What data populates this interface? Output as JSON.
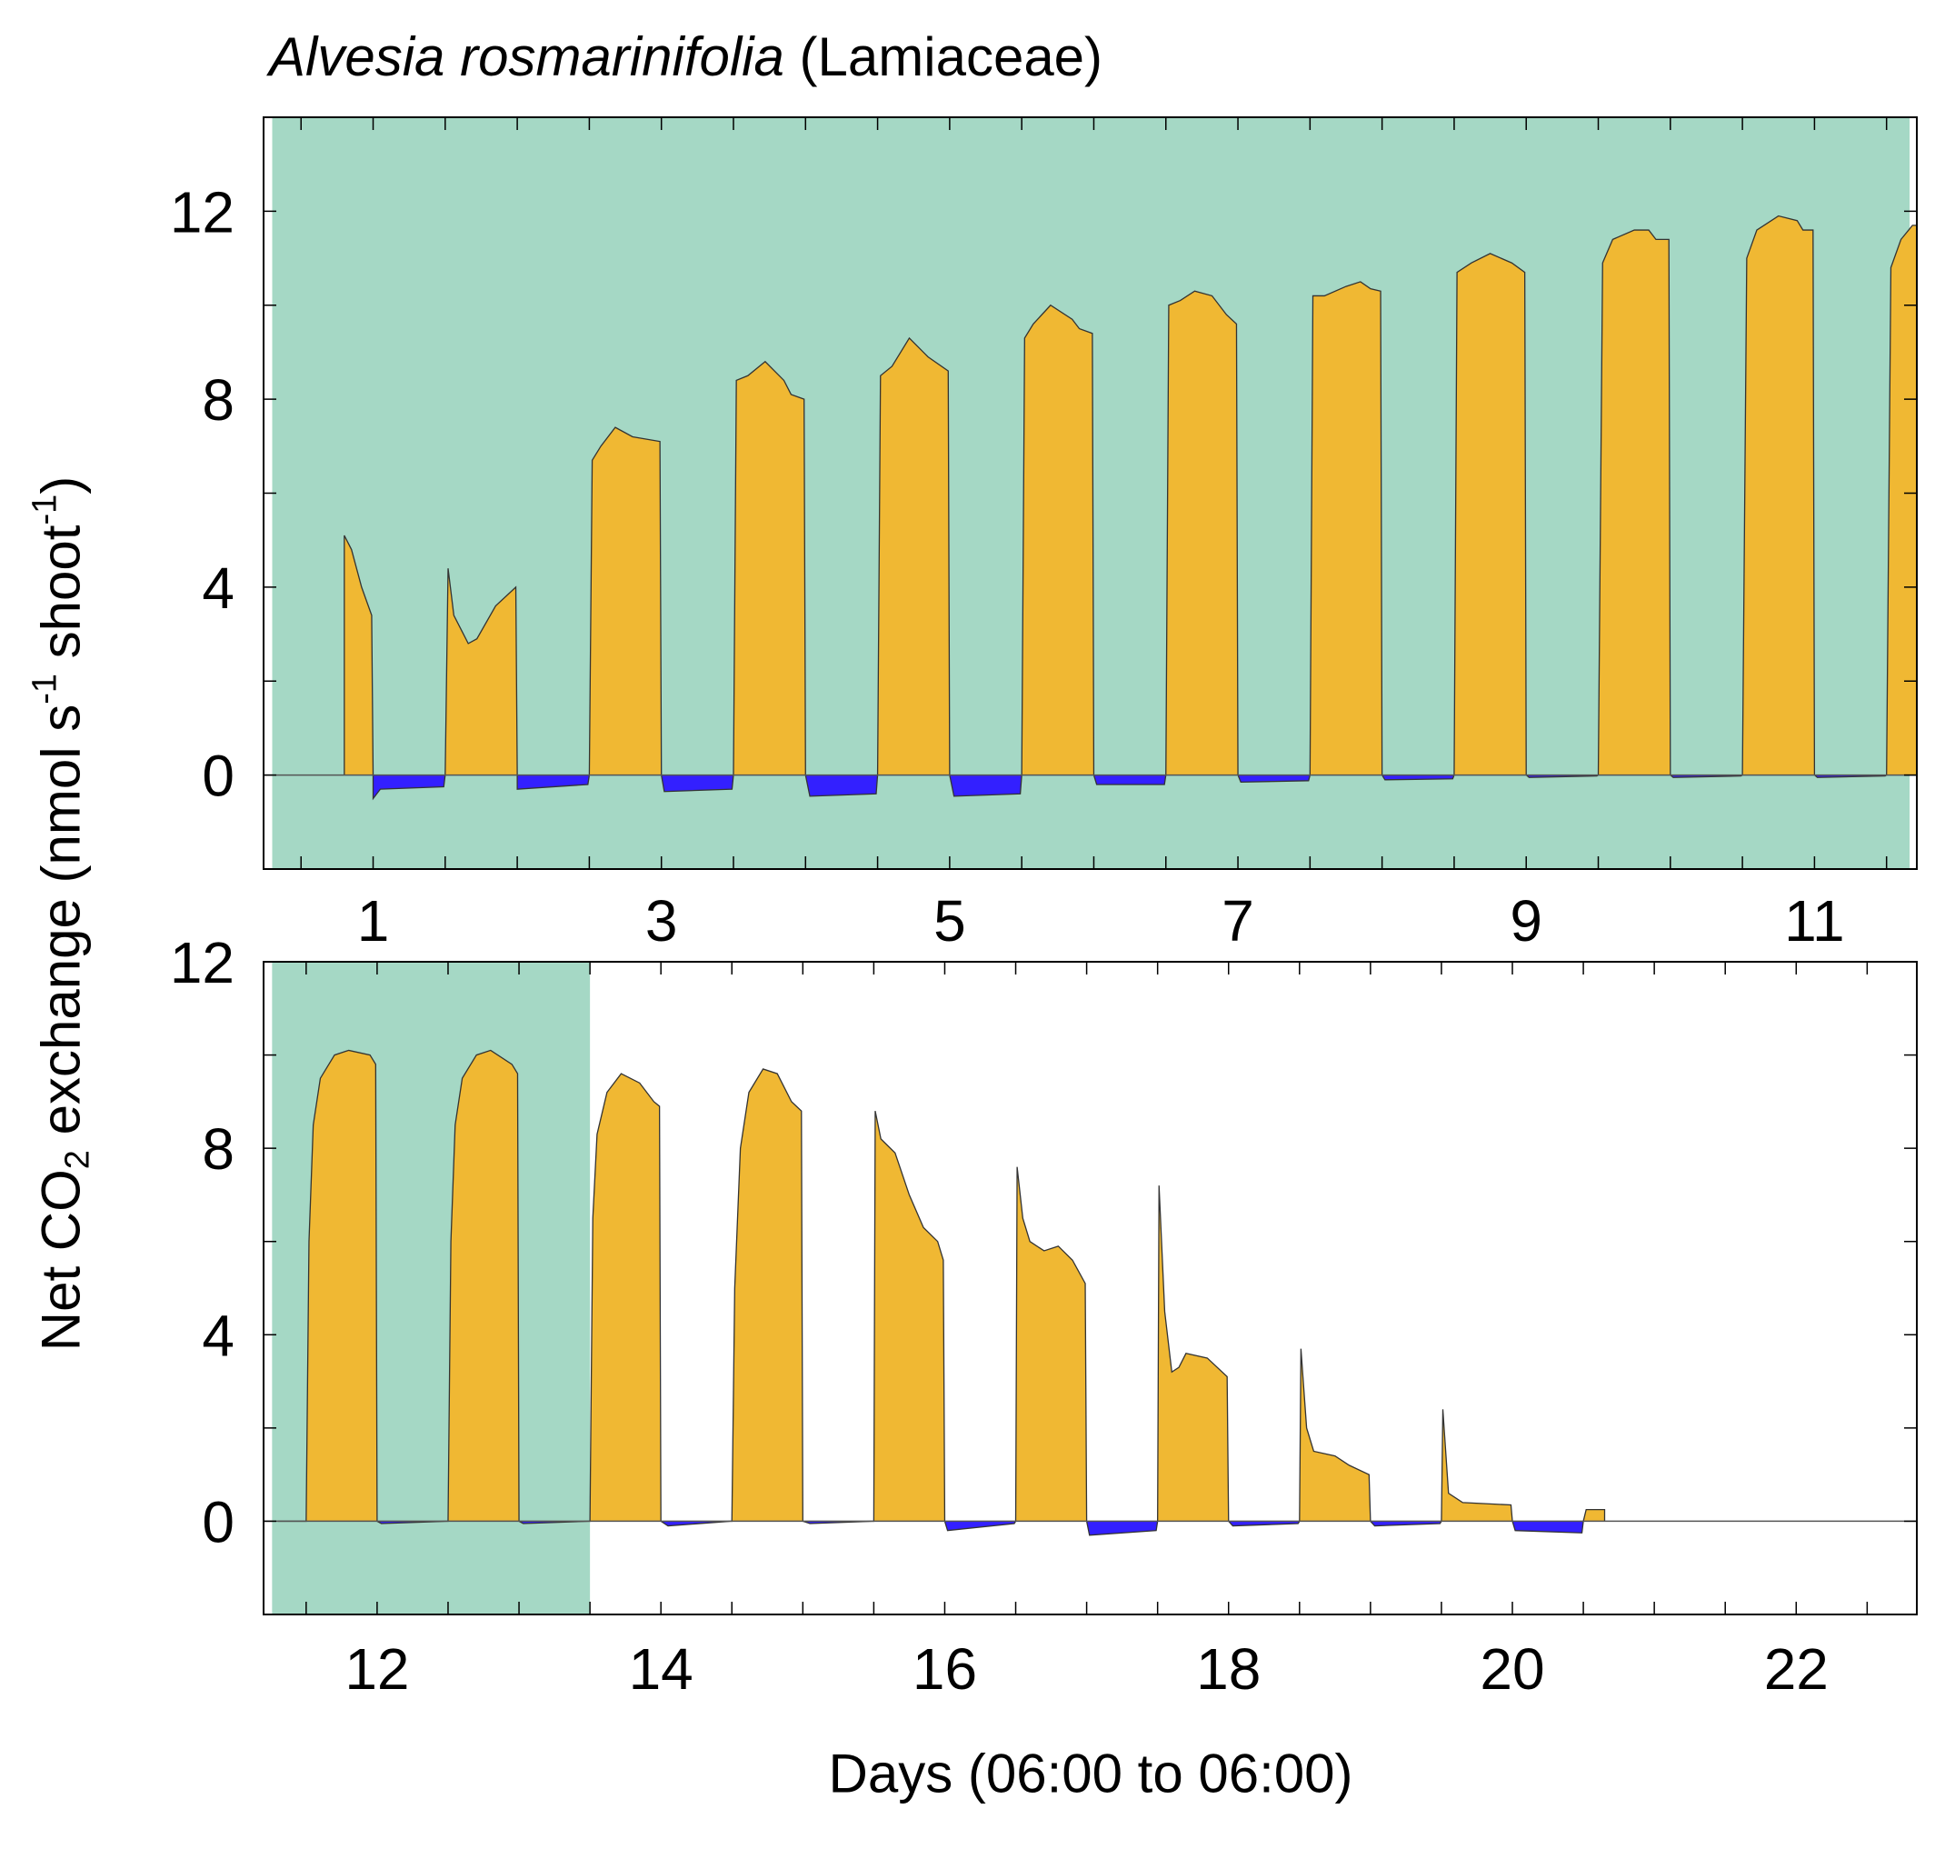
{
  "title": {
    "species": "Alvesia rosmarinifolia",
    "family": "(Lamiaceae)"
  },
  "colors": {
    "uptake": "#f0b833",
    "release": "#3320ff",
    "shading": "#a5d8c5",
    "line": "#333333"
  },
  "chart_data": [
    {
      "type": "area",
      "panel": "top",
      "xlim": [
        0.24,
        11.71
      ],
      "ylim": [
        -2,
        14
      ],
      "x_tick_labels": [
        "1",
        "3",
        "5",
        "7",
        "9",
        "11"
      ],
      "y_tick_labels": [
        "0",
        "4",
        "8",
        "12"
      ],
      "shaded_x": [
        0.3,
        11.66
      ],
      "points": [
        [
          0.8,
          0
        ],
        [
          0.8,
          5.1
        ],
        [
          0.85,
          4.8
        ],
        [
          0.92,
          4.0
        ],
        [
          0.99,
          3.4
        ],
        [
          1.0,
          0
        ],
        [
          1.0,
          -0.5
        ],
        [
          1.05,
          -0.3
        ],
        [
          1.49,
          -0.25
        ],
        [
          1.5,
          0
        ],
        [
          1.52,
          4.4
        ],
        [
          1.56,
          3.4
        ],
        [
          1.66,
          2.8
        ],
        [
          1.72,
          2.9
        ],
        [
          1.85,
          3.6
        ],
        [
          1.99,
          4.0
        ],
        [
          2.0,
          0
        ],
        [
          2.0,
          -0.3
        ],
        [
          2.49,
          -0.2
        ],
        [
          2.5,
          0
        ],
        [
          2.52,
          6.7
        ],
        [
          2.58,
          7.0
        ],
        [
          2.68,
          7.4
        ],
        [
          2.8,
          7.2
        ],
        [
          2.99,
          7.1
        ],
        [
          3.0,
          0
        ],
        [
          3.02,
          -0.35
        ],
        [
          3.49,
          -0.3
        ],
        [
          3.5,
          0
        ],
        [
          3.52,
          8.4
        ],
        [
          3.6,
          8.5
        ],
        [
          3.72,
          8.8
        ],
        [
          3.85,
          8.4
        ],
        [
          3.9,
          8.1
        ],
        [
          3.99,
          8.0
        ],
        [
          4.0,
          0
        ],
        [
          4.03,
          -0.45
        ],
        [
          4.49,
          -0.4
        ],
        [
          4.5,
          0
        ],
        [
          4.52,
          8.5
        ],
        [
          4.6,
          8.7
        ],
        [
          4.72,
          9.3
        ],
        [
          4.85,
          8.9
        ],
        [
          4.99,
          8.6
        ],
        [
          5.0,
          0
        ],
        [
          5.03,
          -0.45
        ],
        [
          5.49,
          -0.4
        ],
        [
          5.5,
          0
        ],
        [
          5.52,
          9.3
        ],
        [
          5.58,
          9.6
        ],
        [
          5.7,
          10.0
        ],
        [
          5.85,
          9.7
        ],
        [
          5.9,
          9.5
        ],
        [
          5.99,
          9.4
        ],
        [
          6.0,
          0
        ],
        [
          6.02,
          -0.2
        ],
        [
          6.49,
          -0.2
        ],
        [
          6.5,
          0
        ],
        [
          6.52,
          10.0
        ],
        [
          6.6,
          10.1
        ],
        [
          6.7,
          10.3
        ],
        [
          6.82,
          10.2
        ],
        [
          6.92,
          9.8
        ],
        [
          6.99,
          9.6
        ],
        [
          7.0,
          0
        ],
        [
          7.02,
          -0.15
        ],
        [
          7.49,
          -0.12
        ],
        [
          7.5,
          0
        ],
        [
          7.52,
          10.2
        ],
        [
          7.6,
          10.2
        ],
        [
          7.75,
          10.4
        ],
        [
          7.85,
          10.5
        ],
        [
          7.92,
          10.35
        ],
        [
          7.99,
          10.3
        ],
        [
          8.0,
          0
        ],
        [
          8.02,
          -0.1
        ],
        [
          8.49,
          -0.08
        ],
        [
          8.5,
          0
        ],
        [
          8.52,
          10.7
        ],
        [
          8.62,
          10.9
        ],
        [
          8.75,
          11.1
        ],
        [
          8.9,
          10.9
        ],
        [
          8.99,
          10.7
        ],
        [
          9.0,
          0
        ],
        [
          9.02,
          -0.05
        ],
        [
          9.49,
          -0.02
        ],
        [
          9.5,
          0
        ],
        [
          9.53,
          10.9
        ],
        [
          9.6,
          11.4
        ],
        [
          9.75,
          11.6
        ],
        [
          9.85,
          11.6
        ],
        [
          9.9,
          11.4
        ],
        [
          9.99,
          11.4
        ],
        [
          10.0,
          0
        ],
        [
          10.02,
          -0.05
        ],
        [
          10.49,
          -0.02
        ],
        [
          10.5,
          0
        ],
        [
          10.53,
          11.0
        ],
        [
          10.6,
          11.6
        ],
        [
          10.75,
          11.9
        ],
        [
          10.88,
          11.8
        ],
        [
          10.92,
          11.6
        ],
        [
          10.99,
          11.6
        ],
        [
          11.0,
          0
        ],
        [
          11.02,
          -0.05
        ],
        [
          11.49,
          -0.02
        ],
        [
          11.5,
          0
        ],
        [
          11.53,
          10.8
        ],
        [
          11.6,
          11.4
        ],
        [
          11.68,
          11.7
        ],
        [
          11.71,
          11.7
        ]
      ]
    },
    {
      "type": "area",
      "panel": "bottom",
      "xlim": [
        11.2,
        22.85
      ],
      "ylim": [
        -2,
        12
      ],
      "x_tick_labels": [
        "12",
        "14",
        "16",
        "18",
        "20",
        "22"
      ],
      "y_tick_labels": [
        "0",
        "4",
        "8",
        "12"
      ],
      "xlabel": "Days (06:00 to 06:00)",
      "ylabel": "Net CO2 exchange (nmol s-1 shoot-1)",
      "shaded_x": [
        11.26,
        13.5
      ],
      "points": [
        [
          11.3,
          0
        ],
        [
          11.5,
          0
        ],
        [
          11.52,
          6
        ],
        [
          11.55,
          8.5
        ],
        [
          11.6,
          9.5
        ],
        [
          11.7,
          10.0
        ],
        [
          11.8,
          10.1
        ],
        [
          11.95,
          10.0
        ],
        [
          11.99,
          9.8
        ],
        [
          12.0,
          0
        ],
        [
          12.03,
          -0.05
        ],
        [
          12.49,
          0
        ],
        [
          12.5,
          0
        ],
        [
          12.52,
          6
        ],
        [
          12.55,
          8.5
        ],
        [
          12.6,
          9.5
        ],
        [
          12.7,
          10.0
        ],
        [
          12.8,
          10.1
        ],
        [
          12.95,
          9.8
        ],
        [
          12.99,
          9.6
        ],
        [
          13.0,
          0
        ],
        [
          13.03,
          -0.05
        ],
        [
          13.49,
          0
        ],
        [
          13.5,
          0
        ],
        [
          13.52,
          6.5
        ],
        [
          13.55,
          8.3
        ],
        [
          13.62,
          9.2
        ],
        [
          13.72,
          9.6
        ],
        [
          13.85,
          9.4
        ],
        [
          13.95,
          9.0
        ],
        [
          13.99,
          8.9
        ],
        [
          14.0,
          0
        ],
        [
          14.05,
          -0.1
        ],
        [
          14.49,
          0
        ],
        [
          14.5,
          0
        ],
        [
          14.52,
          5.0
        ],
        [
          14.56,
          8.0
        ],
        [
          14.62,
          9.2
        ],
        [
          14.72,
          9.7
        ],
        [
          14.82,
          9.6
        ],
        [
          14.92,
          9.0
        ],
        [
          14.99,
          8.8
        ],
        [
          15.0,
          0
        ],
        [
          15.05,
          -0.05
        ],
        [
          15.49,
          0
        ],
        [
          15.5,
          0
        ],
        [
          15.51,
          8.8
        ],
        [
          15.55,
          8.2
        ],
        [
          15.65,
          7.9
        ],
        [
          15.75,
          7.0
        ],
        [
          15.85,
          6.3
        ],
        [
          15.95,
          6.0
        ],
        [
          15.99,
          5.6
        ],
        [
          16.0,
          0
        ],
        [
          16.02,
          -0.2
        ],
        [
          16.49,
          -0.05
        ],
        [
          16.5,
          0
        ],
        [
          16.51,
          7.6
        ],
        [
          16.55,
          6.5
        ],
        [
          16.6,
          6.0
        ],
        [
          16.7,
          5.8
        ],
        [
          16.8,
          5.9
        ],
        [
          16.9,
          5.6
        ],
        [
          16.99,
          5.1
        ],
        [
          17.0,
          0
        ],
        [
          17.02,
          -0.3
        ],
        [
          17.49,
          -0.2
        ],
        [
          17.5,
          0
        ],
        [
          17.51,
          7.2
        ],
        [
          17.55,
          4.5
        ],
        [
          17.6,
          3.2
        ],
        [
          17.65,
          3.3
        ],
        [
          17.7,
          3.6
        ],
        [
          17.85,
          3.5
        ],
        [
          17.99,
          3.1
        ],
        [
          18.0,
          0
        ],
        [
          18.03,
          -0.1
        ],
        [
          18.49,
          -0.05
        ],
        [
          18.5,
          0
        ],
        [
          18.51,
          3.7
        ],
        [
          18.55,
          2.0
        ],
        [
          18.6,
          1.5
        ],
        [
          18.75,
          1.4
        ],
        [
          18.85,
          1.2
        ],
        [
          18.99,
          1.0
        ],
        [
          19.0,
          0
        ],
        [
          19.03,
          -0.1
        ],
        [
          19.49,
          -0.05
        ],
        [
          19.5,
          0
        ],
        [
          19.51,
          2.4
        ],
        [
          19.55,
          0.6
        ],
        [
          19.65,
          0.4
        ],
        [
          19.99,
          0.35
        ],
        [
          20.0,
          0
        ],
        [
          20.02,
          -0.2
        ],
        [
          20.49,
          -0.25
        ],
        [
          20.5,
          0
        ],
        [
          20.52,
          0.25
        ],
        [
          20.65,
          0.25
        ],
        [
          20.65,
          0
        ]
      ]
    }
  ],
  "labels": {
    "xlabel": "Days (06:00 to 06:00)",
    "ylabel_a": "Net CO",
    "ylabel_sub": "2",
    "ylabel_b": " exchange (nmol s",
    "ylabel_sup1": "-1",
    "ylabel_c": " shoot",
    "ylabel_sup2": "-1",
    "ylabel_d": ")"
  }
}
